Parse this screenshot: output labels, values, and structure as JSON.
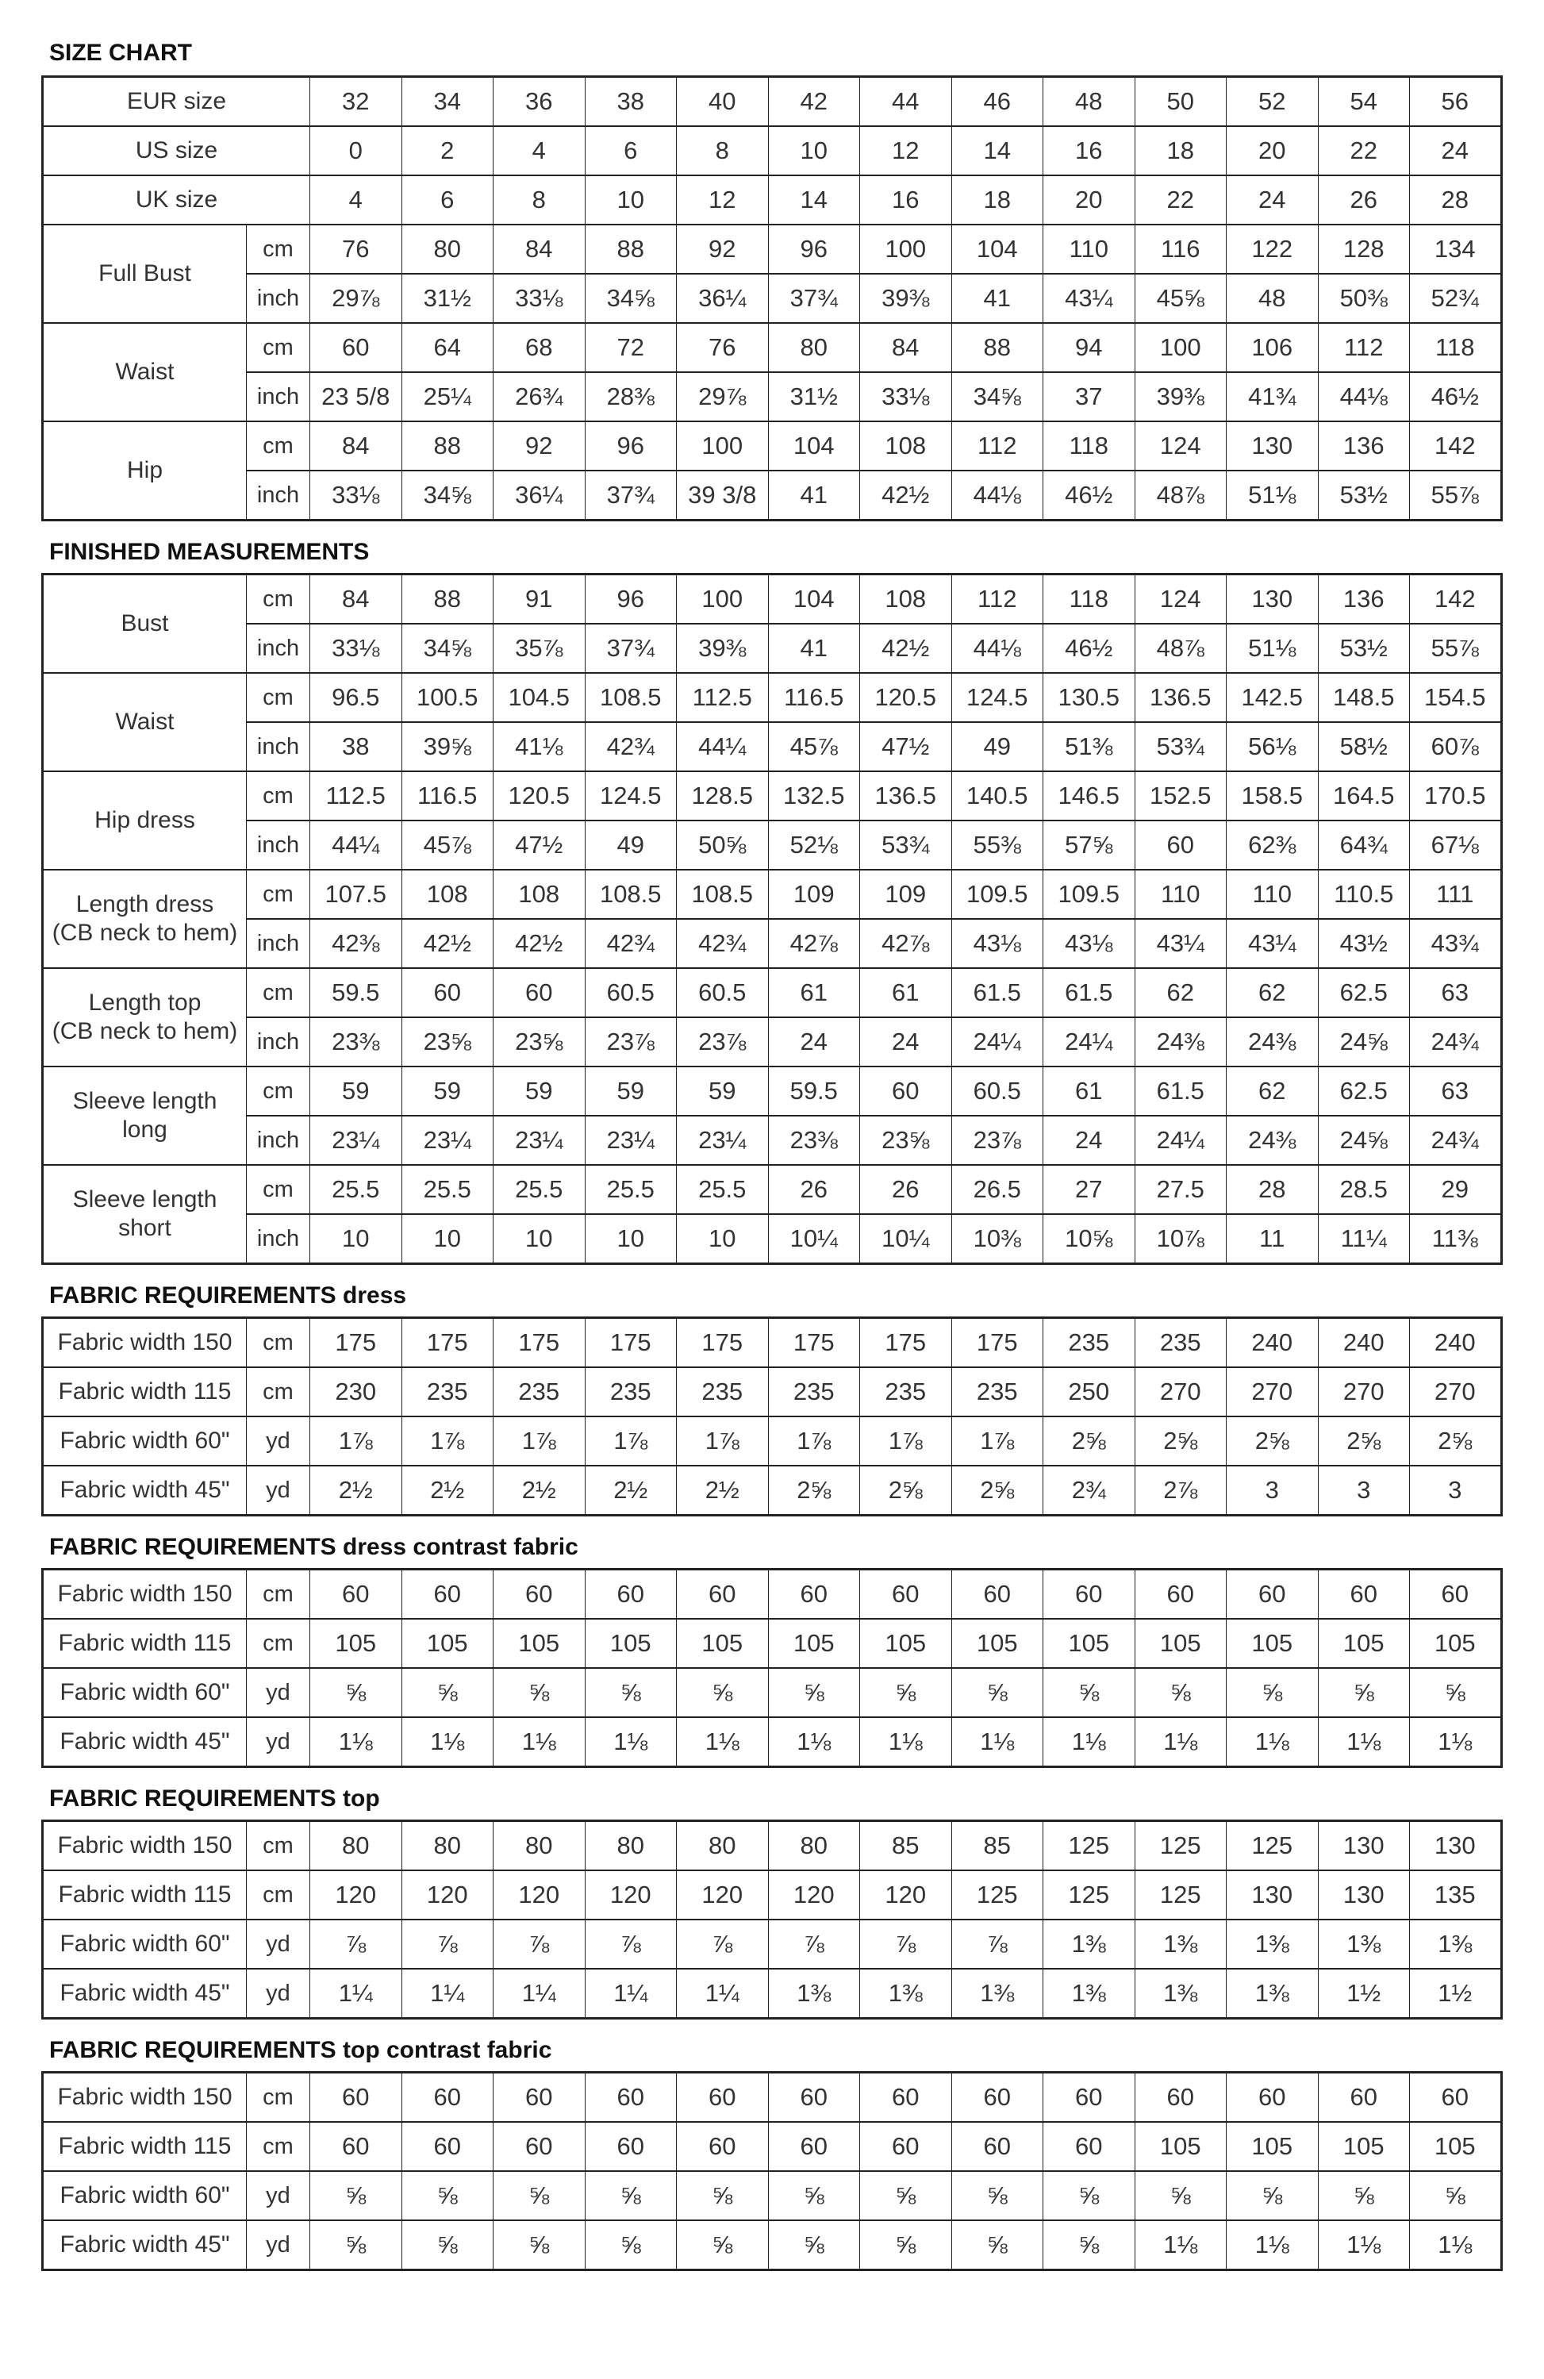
{
  "sections": [
    {
      "title": "SIZE CHART",
      "groups": [
        {
          "label": "EUR size",
          "rows": [
            {
              "unit": "",
              "values": [
                "32",
                "34",
                "36",
                "38",
                "40",
                "42",
                "44",
                "46",
                "48",
                "50",
                "52",
                "54",
                "56"
              ]
            }
          ]
        },
        {
          "label": "US size",
          "rows": [
            {
              "unit": "",
              "values": [
                "0",
                "2",
                "4",
                "6",
                "8",
                "10",
                "12",
                "14",
                "16",
                "18",
                "20",
                "22",
                "24"
              ]
            }
          ]
        },
        {
          "label": "UK size",
          "rows": [
            {
              "unit": "",
              "values": [
                "4",
                "6",
                "8",
                "10",
                "12",
                "14",
                "16",
                "18",
                "20",
                "22",
                "24",
                "26",
                "28"
              ]
            }
          ]
        },
        {
          "label": "Full Bust",
          "rows": [
            {
              "unit": "cm",
              "values": [
                "76",
                "80",
                "84",
                "88",
                "92",
                "96",
                "100",
                "104",
                "110",
                "116",
                "122",
                "128",
                "134"
              ]
            },
            {
              "unit": "inch",
              "values": [
                "29⅞",
                "31½",
                "33⅛",
                "34⅝",
                "36¼",
                "37¾",
                "39⅜",
                "41",
                "43¼",
                "45⅝",
                "48",
                "50⅜",
                "52¾"
              ]
            }
          ]
        },
        {
          "label": "Waist",
          "rows": [
            {
              "unit": "cm",
              "values": [
                "60",
                "64",
                "68",
                "72",
                "76",
                "80",
                "84",
                "88",
                "94",
                "100",
                "106",
                "112",
                "118"
              ]
            },
            {
              "unit": "inch",
              "values": [
                "23 5/8",
                "25¼",
                "26¾",
                "28⅜",
                "29⅞",
                "31½",
                "33⅛",
                "34⅝",
                "37",
                "39⅜",
                "41¾",
                "44⅛",
                "46½"
              ]
            }
          ]
        },
        {
          "label": "Hip",
          "rows": [
            {
              "unit": "cm",
              "values": [
                "84",
                "88",
                "92",
                "96",
                "100",
                "104",
                "108",
                "112",
                "118",
                "124",
                "130",
                "136",
                "142"
              ]
            },
            {
              "unit": "inch",
              "values": [
                "33⅛",
                "34⅝",
                "36¼",
                "37¾",
                "39 3/8",
                "41",
                "42½",
                "44⅛",
                "46½",
                "48⅞",
                "51⅛",
                "53½",
                "55⅞"
              ]
            }
          ]
        }
      ]
    },
    {
      "title": "FINISHED MEASUREMENTS",
      "groups": [
        {
          "label": "Bust",
          "rows": [
            {
              "unit": "cm",
              "values": [
                "84",
                "88",
                "91",
                "96",
                "100",
                "104",
                "108",
                "112",
                "118",
                "124",
                "130",
                "136",
                "142"
              ]
            },
            {
              "unit": "inch",
              "values": [
                "33⅛",
                "34⅝",
                "35⅞",
                "37¾",
                "39⅜",
                "41",
                "42½",
                "44⅛",
                "46½",
                "48⅞",
                "51⅛",
                "53½",
                "55⅞"
              ]
            }
          ]
        },
        {
          "label": "Waist",
          "rows": [
            {
              "unit": "cm",
              "values": [
                "96.5",
                "100.5",
                "104.5",
                "108.5",
                "112.5",
                "116.5",
                "120.5",
                "124.5",
                "130.5",
                "136.5",
                "142.5",
                "148.5",
                "154.5"
              ]
            },
            {
              "unit": "inch",
              "values": [
                "38",
                "39⅝",
                "41⅛",
                "42¾",
                "44¼",
                "45⅞",
                "47½",
                "49",
                "51⅜",
                "53¾",
                "56⅛",
                "58½",
                "60⅞"
              ]
            }
          ]
        },
        {
          "label": "Hip dress",
          "rows": [
            {
              "unit": "cm",
              "values": [
                "112.5",
                "116.5",
                "120.5",
                "124.5",
                "128.5",
                "132.5",
                "136.5",
                "140.5",
                "146.5",
                "152.5",
                "158.5",
                "164.5",
                "170.5"
              ]
            },
            {
              "unit": "inch",
              "values": [
                "44¼",
                "45⅞",
                "47½",
                "49",
                "50⅝",
                "52⅛",
                "53¾",
                "55⅜",
                "57⅝",
                "60",
                "62⅜",
                "64¾",
                "67⅛"
              ]
            }
          ]
        },
        {
          "label": "Length dress\n(CB neck to hem)",
          "rows": [
            {
              "unit": "cm",
              "values": [
                "107.5",
                "108",
                "108",
                "108.5",
                "108.5",
                "109",
                "109",
                "109.5",
                "109.5",
                "110",
                "110",
                "110.5",
                "111"
              ]
            },
            {
              "unit": "inch",
              "values": [
                "42⅜",
                "42½",
                "42½",
                "42¾",
                "42¾",
                "42⅞",
                "42⅞",
                "43⅛",
                "43⅛",
                "43¼",
                "43¼",
                "43½",
                "43¾"
              ]
            }
          ]
        },
        {
          "label": "Length top\n(CB neck to hem)",
          "rows": [
            {
              "unit": "cm",
              "values": [
                "59.5",
                "60",
                "60",
                "60.5",
                "60.5",
                "61",
                "61",
                "61.5",
                "61.5",
                "62",
                "62",
                "62.5",
                "63"
              ]
            },
            {
              "unit": "inch",
              "values": [
                "23⅜",
                "23⅝",
                "23⅝",
                "23⅞",
                "23⅞",
                "24",
                "24",
                "24¼",
                "24¼",
                "24⅜",
                "24⅜",
                "24⅝",
                "24¾"
              ]
            }
          ]
        },
        {
          "label": "Sleeve length\nlong",
          "rows": [
            {
              "unit": "cm",
              "values": [
                "59",
                "59",
                "59",
                "59",
                "59",
                "59.5",
                "60",
                "60.5",
                "61",
                "61.5",
                "62",
                "62.5",
                "63"
              ]
            },
            {
              "unit": "inch",
              "values": [
                "23¼",
                "23¼",
                "23¼",
                "23¼",
                "23¼",
                "23⅜",
                "23⅝",
                "23⅞",
                "24",
                "24¼",
                "24⅜",
                "24⅝",
                "24¾"
              ]
            }
          ]
        },
        {
          "label": "Sleeve length\nshort",
          "rows": [
            {
              "unit": "cm",
              "values": [
                "25.5",
                "25.5",
                "25.5",
                "25.5",
                "25.5",
                "26",
                "26",
                "26.5",
                "27",
                "27.5",
                "28",
                "28.5",
                "29"
              ]
            },
            {
              "unit": "inch",
              "values": [
                "10",
                "10",
                "10",
                "10",
                "10",
                "10¼",
                "10¼",
                "10⅜",
                "10⅝",
                "10⅞",
                "11",
                "11¼",
                "11⅜"
              ]
            }
          ]
        }
      ]
    },
    {
      "title": "FABRIC REQUIREMENTS dress",
      "groups": [
        {
          "label": "Fabric width 150",
          "rows": [
            {
              "unit": "cm",
              "values": [
                "175",
                "175",
                "175",
                "175",
                "175",
                "175",
                "175",
                "175",
                "235",
                "235",
                "240",
                "240",
                "240"
              ]
            }
          ]
        },
        {
          "label": "Fabric width 115",
          "rows": [
            {
              "unit": "cm",
              "values": [
                "230",
                "235",
                "235",
                "235",
                "235",
                "235",
                "235",
                "235",
                "250",
                "270",
                "270",
                "270",
                "270"
              ]
            }
          ]
        },
        {
          "label": "Fabric width 60\"",
          "rows": [
            {
              "unit": "yd",
              "values": [
                "1⅞",
                "1⅞",
                "1⅞",
                "1⅞",
                "1⅞",
                "1⅞",
                "1⅞",
                "1⅞",
                "2⅝",
                "2⅝",
                "2⅝",
                "2⅝",
                "2⅝"
              ]
            }
          ]
        },
        {
          "label": "Fabric width 45\"",
          "rows": [
            {
              "unit": "yd",
              "values": [
                "2½",
                "2½",
                "2½",
                "2½",
                "2½",
                "2⅝",
                "2⅝",
                "2⅝",
                "2¾",
                "2⅞",
                "3",
                "3",
                "3"
              ]
            }
          ]
        }
      ]
    },
    {
      "title": "FABRIC REQUIREMENTS dress contrast fabric",
      "groups": [
        {
          "label": "Fabric width 150",
          "rows": [
            {
              "unit": "cm",
              "values": [
                "60",
                "60",
                "60",
                "60",
                "60",
                "60",
                "60",
                "60",
                "60",
                "60",
                "60",
                "60",
                "60"
              ]
            }
          ]
        },
        {
          "label": "Fabric width 115",
          "rows": [
            {
              "unit": "cm",
              "values": [
                "105",
                "105",
                "105",
                "105",
                "105",
                "105",
                "105",
                "105",
                "105",
                "105",
                "105",
                "105",
                "105"
              ]
            }
          ]
        },
        {
          "label": "Fabric width 60\"",
          "rows": [
            {
              "unit": "yd",
              "values": [
                "⅝",
                "⅝",
                "⅝",
                "⅝",
                "⅝",
                "⅝",
                "⅝",
                "⅝",
                "⅝",
                "⅝",
                "⅝",
                "⅝",
                "⅝"
              ]
            }
          ]
        },
        {
          "label": "Fabric width 45\"",
          "rows": [
            {
              "unit": "yd",
              "values": [
                "1⅛",
                "1⅛",
                "1⅛",
                "1⅛",
                "1⅛",
                "1⅛",
                "1⅛",
                "1⅛",
                "1⅛",
                "1⅛",
                "1⅛",
                "1⅛",
                "1⅛"
              ]
            }
          ]
        }
      ]
    },
    {
      "title": "FABRIC REQUIREMENTS top",
      "groups": [
        {
          "label": "Fabric width 150",
          "rows": [
            {
              "unit": "cm",
              "values": [
                "80",
                "80",
                "80",
                "80",
                "80",
                "80",
                "85",
                "85",
                "125",
                "125",
                "125",
                "130",
                "130"
              ]
            }
          ]
        },
        {
          "label": "Fabric width 115",
          "rows": [
            {
              "unit": "cm",
              "values": [
                "120",
                "120",
                "120",
                "120",
                "120",
                "120",
                "120",
                "125",
                "125",
                "125",
                "130",
                "130",
                "135"
              ]
            }
          ]
        },
        {
          "label": "Fabric width 60\"",
          "rows": [
            {
              "unit": "yd",
              "values": [
                "⅞",
                "⅞",
                "⅞",
                "⅞",
                "⅞",
                "⅞",
                "⅞",
                "⅞",
                "1⅜",
                "1⅜",
                "1⅜",
                "1⅜",
                "1⅜"
              ]
            }
          ]
        },
        {
          "label": "Fabric width 45\"",
          "rows": [
            {
              "unit": "yd",
              "values": [
                "1¼",
                "1¼",
                "1¼",
                "1¼",
                "1¼",
                "1⅜",
                "1⅜",
                "1⅜",
                "1⅜",
                "1⅜",
                "1⅜",
                "1½",
                "1½"
              ]
            }
          ]
        }
      ]
    },
    {
      "title": "FABRIC REQUIREMENTS top contrast fabric",
      "groups": [
        {
          "label": "Fabric width 150",
          "rows": [
            {
              "unit": "cm",
              "values": [
                "60",
                "60",
                "60",
                "60",
                "60",
                "60",
                "60",
                "60",
                "60",
                "60",
                "60",
                "60",
                "60"
              ]
            }
          ]
        },
        {
          "label": "Fabric width 115",
          "rows": [
            {
              "unit": "cm",
              "values": [
                "60",
                "60",
                "60",
                "60",
                "60",
                "60",
                "60",
                "60",
                "60",
                "105",
                "105",
                "105",
                "105"
              ]
            }
          ]
        },
        {
          "label": "Fabric width 60\"",
          "rows": [
            {
              "unit": "yd",
              "values": [
                "⅝",
                "⅝",
                "⅝",
                "⅝",
                "⅝",
                "⅝",
                "⅝",
                "⅝",
                "⅝",
                "⅝",
                "⅝",
                "⅝",
                "⅝"
              ]
            }
          ]
        },
        {
          "label": "Fabric width 45\"",
          "rows": [
            {
              "unit": "yd",
              "values": [
                "⅝",
                "⅝",
                "⅝",
                "⅝",
                "⅝",
                "⅝",
                "⅝",
                "⅝",
                "⅝",
                "1⅛",
                "1⅛",
                "1⅛",
                "1⅛"
              ]
            }
          ]
        }
      ]
    }
  ]
}
